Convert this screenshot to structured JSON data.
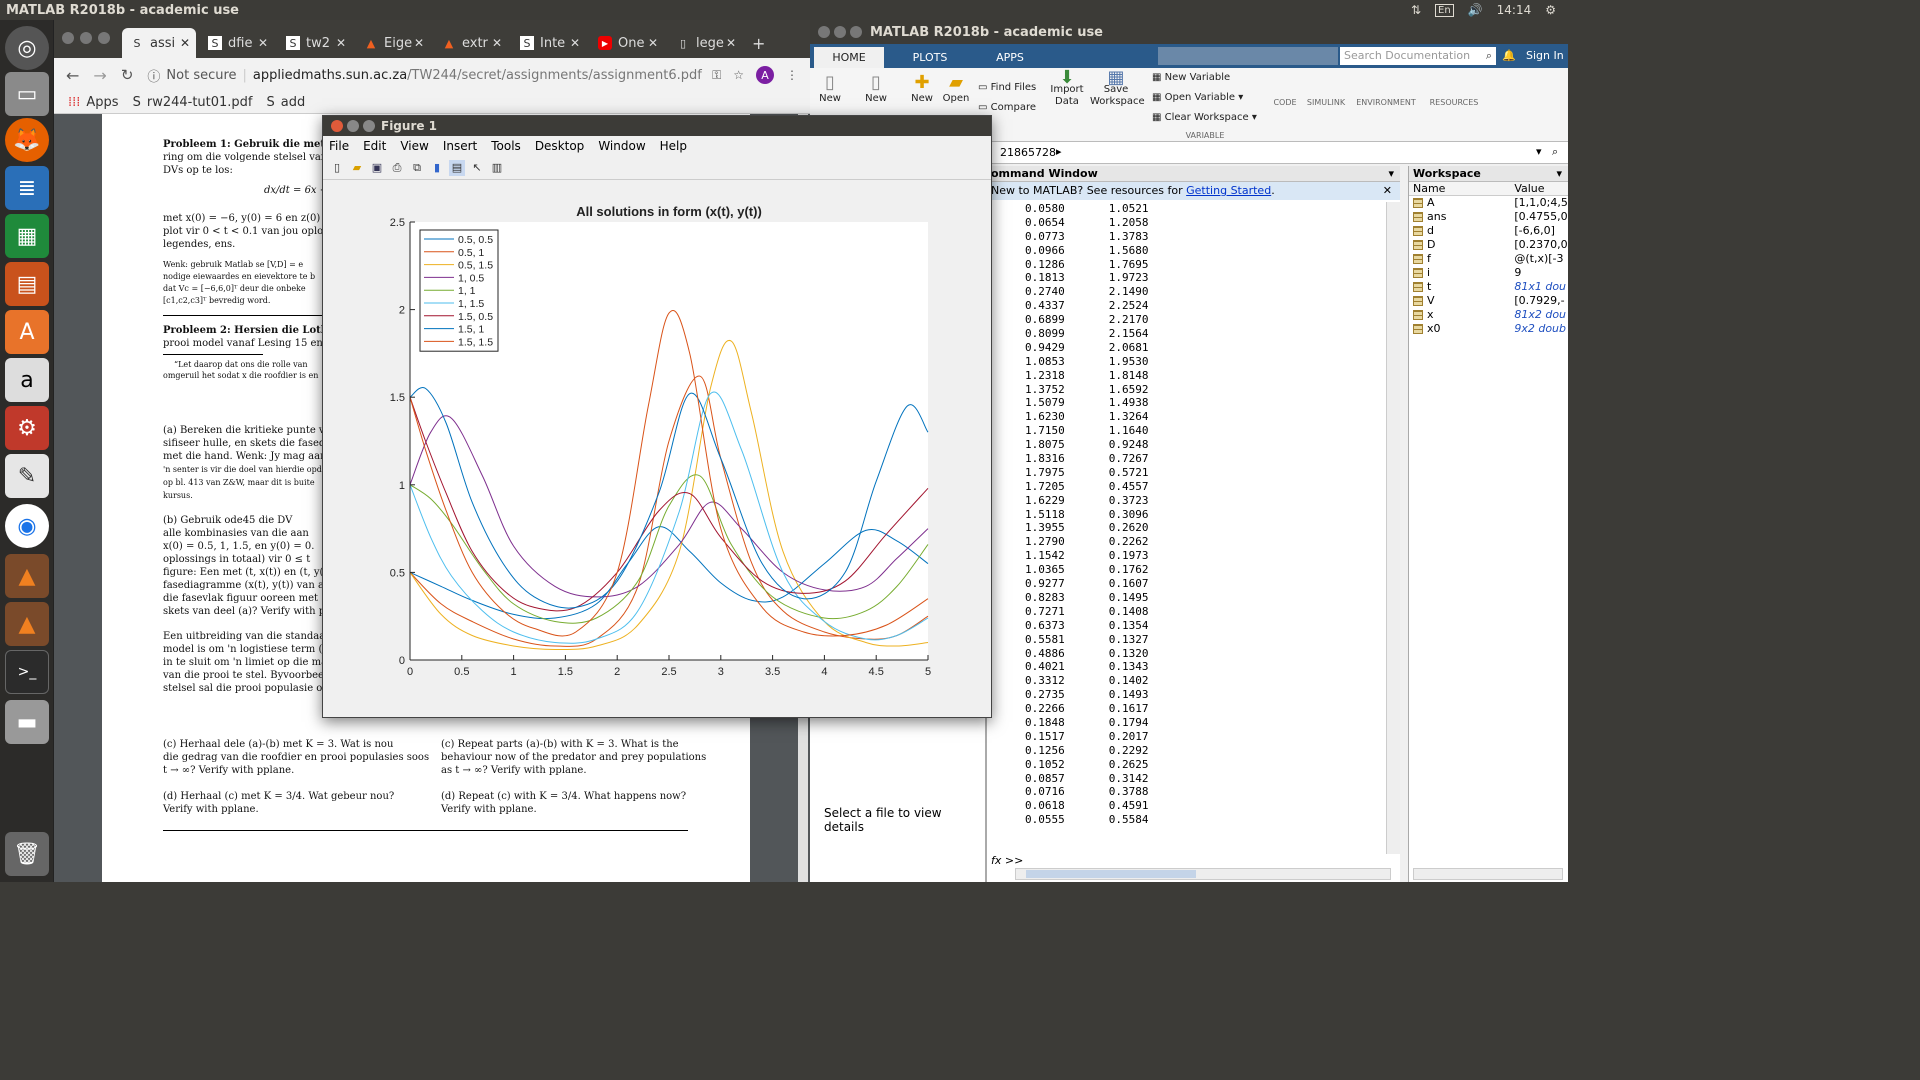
{
  "desktop": {
    "top_title": "MATLAB R2018b - academic use",
    "clock": "14:14",
    "keyboard": "En"
  },
  "chrome": {
    "tabs": [
      {
        "label": "assi",
        "icon": "S"
      },
      {
        "label": "dfie",
        "icon": "S"
      },
      {
        "label": "tw2",
        "icon": "S"
      },
      {
        "label": "Eige",
        "icon": "matlab"
      },
      {
        "label": "extr",
        "icon": "matlab"
      },
      {
        "label": "Inte",
        "icon": "S"
      },
      {
        "label": "One",
        "icon": "youtube"
      },
      {
        "label": "lege",
        "icon": "doc"
      }
    ],
    "not_secure": "Not secure",
    "url_host": "appliedmaths.sun.ac.za",
    "url_path": "/TW244/secret/assignments/assignment6.pdf",
    "avatar": "A",
    "bookmarks": [
      "Apps",
      "rw244-tut01.pdf",
      "add"
    ]
  },
  "pdf": {
    "p1": "Probleem 1: Gebruik die metode",
    "p1b": "ring om die volgende stelsel van",
    "p1c": "DVs op te los:",
    "eq1": "dx/dt = 6x + ...",
    "p1d": "met x(0) = −6, y(0) = 6 en z(0)",
    "p1e": "plot vir 0 < t < 0.1 van jou oploss",
    "p1f": "legendes, ens.",
    "hint1": "Wenk: gebruik Matlab se [V,D] = e",
    "hint2": "nodige eiewaardes en eievektore te b",
    "hint3": "dat Vc = [−6,6,0]ᵀ deur die onbeke",
    "hint4": "[c1,c2,c3]ᵀ bevredig word.",
    "p2": "Probleem 2: Hersien die Lotka",
    "p2b": "prooi model vanaf Lesing 15 en o",
    "fn1": "“Let daarop dat ons die rolle van",
    "fn2": "omgeruil het sodat x die roofdier is en",
    "a1": "(a) Bereken die kritieke punte va",
    "a2": "sifiseer hulle, en skets die fasedia",
    "a3": "met die hand. Wenk: Jy mag aanne",
    "a4": "'n senter is vir die doel van hierdie opd",
    "a5": "op bl. 413 van Z&W, maar dit is buite",
    "a6": "kursus.",
    "b1": "(b) Gebruik ode45 die DV",
    "b2": "alle kombinasies van die aan",
    "b3": "x(0) = 0.5, 1, 1.5, en y(0) = 0.",
    "b4": "oplossings in totaal) vir 0 ≤ t",
    "b5": "figure: Een met (t, x(t)) en (t, y(",
    "b6": "fasediagramme (x(t), y(t)) van all",
    "b7": "die fasevlak figuur ooreen met",
    "b8": "skets van deel (a)? Verify with pp",
    "e1": "Een uitbreiding van die standaa",
    "e2": "model is om 'n logistiese term (",
    "e3": "in te sluit om 'n limiet op die ma",
    "e4": "van die prooi te stel. Byvoorbeeld",
    "e5": "stelsel sal die prooi populasie ond",
    "c1l": "(c) Herhaal dele (a)-(b) met K = 3. Wat is nou",
    "c2l": "die gedrag van die roofdier en prooi populasies soos",
    "c3l": "t → ∞? Verify with pplane.",
    "c1r": "(c) Repeat parts (a)-(b) with K = 3. What is the",
    "c2r": "behaviour now of the predator and prey populations",
    "c3r": "as t → ∞? Verify with pplane.",
    "d1l": "(d) Herhaal (c) met K = 3/4. Wat gebeur nou?",
    "d2l": "Verify with pplane.",
    "d1r": "(d) Repeat (c) with K = 3/4. What happens now?",
    "d2r": "Verify with pplane."
  },
  "matlab": {
    "title": "MATLAB R2018b - academic use",
    "tabs": [
      "HOME",
      "PLOTS",
      "APPS"
    ],
    "search_placeholder": "Search Documentation",
    "sign_in": "Sign In",
    "ribbon": {
      "new1": "New",
      "new2": "New",
      "new3": "New",
      "open": "Open",
      "find_files": "Find Files",
      "compare": "Compare",
      "import": "Import\nData",
      "save_ws": "Save\nWorkspace",
      "new_var": "New Variable",
      "open_var": "Open Variable",
      "clear_ws": "Clear Workspace",
      "variable": "VARIABLE",
      "code": "CODE",
      "simulink": "SIMULINK",
      "environment": "ENVIRONMENT",
      "resources": "RESOURCES"
    },
    "path": "21865728",
    "command_window_title": "ommand Window",
    "info_text": "New to MATLAB? See resources for ",
    "info_link": "Getting Started",
    "info_suffix": ".",
    "prompt": ">>",
    "left_pane_text": "Select a file to view details",
    "output_rows": [
      [
        "0.0580",
        "1.0521"
      ],
      [
        "0.0654",
        "1.2058"
      ],
      [
        "0.0773",
        "1.3783"
      ],
      [
        "0.0966",
        "1.5680"
      ],
      [
        "0.1286",
        "1.7695"
      ],
      [
        "0.1813",
        "1.9723"
      ],
      [
        "0.2740",
        "2.1490"
      ],
      [
        "0.4337",
        "2.2524"
      ],
      [
        "0.6899",
        "2.2170"
      ],
      [
        "0.8099",
        "2.1564"
      ],
      [
        "0.9429",
        "2.0681"
      ],
      [
        "1.0853",
        "1.9530"
      ],
      [
        "1.2318",
        "1.8148"
      ],
      [
        "1.3752",
        "1.6592"
      ],
      [
        "1.5079",
        "1.4938"
      ],
      [
        "1.6230",
        "1.3264"
      ],
      [
        "1.7150",
        "1.1640"
      ],
      [
        "1.8075",
        "0.9248"
      ],
      [
        "1.8316",
        "0.7267"
      ],
      [
        "1.7975",
        "0.5721"
      ],
      [
        "1.7205",
        "0.4557"
      ],
      [
        "1.6229",
        "0.3723"
      ],
      [
        "1.5118",
        "0.3096"
      ],
      [
        "1.3955",
        "0.2620"
      ],
      [
        "1.2790",
        "0.2262"
      ],
      [
        "1.1542",
        "0.1973"
      ],
      [
        "1.0365",
        "0.1762"
      ],
      [
        "0.9277",
        "0.1607"
      ],
      [
        "0.8283",
        "0.1495"
      ],
      [
        "0.7271",
        "0.1408"
      ],
      [
        "0.6373",
        "0.1354"
      ],
      [
        "0.5581",
        "0.1327"
      ],
      [
        "0.4886",
        "0.1320"
      ],
      [
        "0.4021",
        "0.1343"
      ],
      [
        "0.3312",
        "0.1402"
      ],
      [
        "0.2735",
        "0.1493"
      ],
      [
        "0.2266",
        "0.1617"
      ],
      [
        "0.1848",
        "0.1794"
      ],
      [
        "0.1517",
        "0.2017"
      ],
      [
        "0.1256",
        "0.2292"
      ],
      [
        "0.1052",
        "0.2625"
      ],
      [
        "0.0857",
        "0.3142"
      ],
      [
        "0.0716",
        "0.3788"
      ],
      [
        "0.0618",
        "0.4591"
      ],
      [
        "0.0555",
        "0.5584"
      ]
    ],
    "workspace_title": "Workspace",
    "ws_headers": [
      "Name",
      "Value"
    ],
    "workspace": [
      {
        "name": "A",
        "value": "[1,1,0;4,5"
      },
      {
        "name": "ans",
        "value": "[0.4755,0"
      },
      {
        "name": "d",
        "value": "[-6,6,0]"
      },
      {
        "name": "D",
        "value": "[0.2370,0"
      },
      {
        "name": "f",
        "value": "@(t,x)[-3"
      },
      {
        "name": "i",
        "value": "9"
      },
      {
        "name": "t",
        "value": "81x1 dou"
      },
      {
        "name": "V",
        "value": "[0.7929,-"
      },
      {
        "name": "x",
        "value": "81x2 dou"
      },
      {
        "name": "x0",
        "value": "9x2 doub"
      }
    ]
  },
  "figure": {
    "title": "Figure 1",
    "menu": [
      "File",
      "Edit",
      "View",
      "Insert",
      "Tools",
      "Desktop",
      "Window",
      "Help"
    ]
  },
  "chart_data": {
    "type": "line",
    "title": "All solutions in form (x(t), y(t))",
    "xlabel": "",
    "ylabel": "",
    "xlim": [
      0,
      5
    ],
    "ylim": [
      0,
      2.5
    ],
    "xticks": [
      "0",
      "0.5",
      "1",
      "1.5",
      "2",
      "2.5",
      "3",
      "3.5",
      "4",
      "4.5",
      "5"
    ],
    "yticks": [
      "0",
      "0.5",
      "1",
      "1.5",
      "2",
      "2.5"
    ],
    "legend_position": "top-left",
    "grid": false,
    "series": [
      {
        "name": "0.5, 0.5",
        "color": "#0072bd",
        "x": [
          0,
          0.3,
          0.6,
          1.0,
          1.4,
          1.8,
          2.1,
          2.4,
          2.7,
          3.0,
          3.3,
          3.6,
          4.0,
          4.4,
          4.7,
          5.0
        ],
        "y": [
          0.5,
          0.42,
          0.34,
          0.26,
          0.24,
          0.32,
          0.55,
          0.76,
          0.62,
          0.44,
          0.34,
          0.36,
          0.55,
          0.74,
          0.68,
          0.55
        ]
      },
      {
        "name": "0.5, 1",
        "color": "#d95319",
        "x": [
          0,
          0.3,
          0.6,
          1.0,
          1.4,
          1.8,
          2.2,
          2.5,
          2.8,
          3.0,
          3.3,
          3.6,
          4.0,
          4.4,
          4.7,
          5.0
        ],
        "y": [
          0.5,
          0.32,
          0.22,
          0.12,
          0.08,
          0.12,
          0.42,
          1.25,
          1.62,
          1.15,
          0.55,
          0.28,
          0.16,
          0.12,
          0.14,
          0.25
        ]
      },
      {
        "name": "0.5, 1.5",
        "color": "#edb120",
        "x": [
          0,
          0.3,
          0.6,
          1.0,
          1.4,
          1.8,
          2.2,
          2.6,
          2.9,
          3.1,
          3.3,
          3.6,
          4.0,
          4.4,
          4.7,
          5.0
        ],
        "y": [
          0.5,
          0.26,
          0.14,
          0.08,
          0.06,
          0.08,
          0.2,
          0.62,
          1.55,
          1.82,
          1.4,
          0.62,
          0.22,
          0.1,
          0.08,
          0.1
        ]
      },
      {
        "name": "1, 0.5",
        "color": "#7e2f8e",
        "x": [
          0,
          0.2,
          0.4,
          0.7,
          1.0,
          1.4,
          1.8,
          2.2,
          2.6,
          2.9,
          3.2,
          3.6,
          4.0,
          4.4,
          4.7,
          5.0
        ],
        "y": [
          1.0,
          1.3,
          1.38,
          1.05,
          0.65,
          0.42,
          0.36,
          0.42,
          0.66,
          0.9,
          0.75,
          0.5,
          0.4,
          0.42,
          0.58,
          0.75
        ]
      },
      {
        "name": "1, 1",
        "color": "#77ac30",
        "x": [
          0,
          0.2,
          0.4,
          0.7,
          1.0,
          1.4,
          1.8,
          2.2,
          2.5,
          2.8,
          3.1,
          3.5,
          4.0,
          4.4,
          4.7,
          5.0
        ],
        "y": [
          1.0,
          0.92,
          0.78,
          0.52,
          0.32,
          0.22,
          0.24,
          0.45,
          0.88,
          1.05,
          0.66,
          0.36,
          0.24,
          0.28,
          0.42,
          0.66
        ]
      },
      {
        "name": "1, 1.5",
        "color": "#4dbeee",
        "x": [
          0,
          0.2,
          0.4,
          0.7,
          1.0,
          1.4,
          1.8,
          2.2,
          2.6,
          2.9,
          3.2,
          3.6,
          4.0,
          4.4,
          4.7,
          5.0
        ],
        "y": [
          1.0,
          0.7,
          0.48,
          0.28,
          0.16,
          0.1,
          0.12,
          0.28,
          0.85,
          1.52,
          1.2,
          0.5,
          0.22,
          0.12,
          0.14,
          0.24
        ]
      },
      {
        "name": "1.5, 0.5",
        "color": "#a2142f",
        "x": [
          0,
          0.15,
          0.35,
          0.6,
          0.9,
          1.2,
          1.6,
          2.0,
          2.4,
          2.7,
          3.0,
          3.4,
          3.8,
          4.2,
          4.6,
          5.0
        ],
        "y": [
          1.5,
          1.25,
          0.95,
          0.62,
          0.4,
          0.3,
          0.3,
          0.5,
          0.85,
          0.95,
          0.7,
          0.45,
          0.38,
          0.45,
          0.72,
          0.98
        ]
      },
      {
        "name": "1.5, 1",
        "color": "#0072bd",
        "x": [
          0,
          0.15,
          0.35,
          0.6,
          0.9,
          1.2,
          1.6,
          2.0,
          2.4,
          2.7,
          3.0,
          3.4,
          3.8,
          4.2,
          4.5,
          4.8,
          5.0
        ],
        "y": [
          1.5,
          1.55,
          1.35,
          0.9,
          0.55,
          0.36,
          0.3,
          0.45,
          0.95,
          1.52,
          1.15,
          0.55,
          0.35,
          0.5,
          1.02,
          1.45,
          1.3
        ]
      },
      {
        "name": "1.5, 1.5",
        "color": "#d95319",
        "x": [
          0,
          0.15,
          0.35,
          0.6,
          0.9,
          1.2,
          1.6,
          2.0,
          2.3,
          2.5,
          2.7,
          3.0,
          3.4,
          3.8,
          4.2,
          4.6,
          5.0
        ],
        "y": [
          1.5,
          1.2,
          0.85,
          0.5,
          0.28,
          0.18,
          0.16,
          0.5,
          1.45,
          1.98,
          1.75,
          0.75,
          0.3,
          0.16,
          0.14,
          0.2,
          0.35
        ]
      }
    ]
  }
}
